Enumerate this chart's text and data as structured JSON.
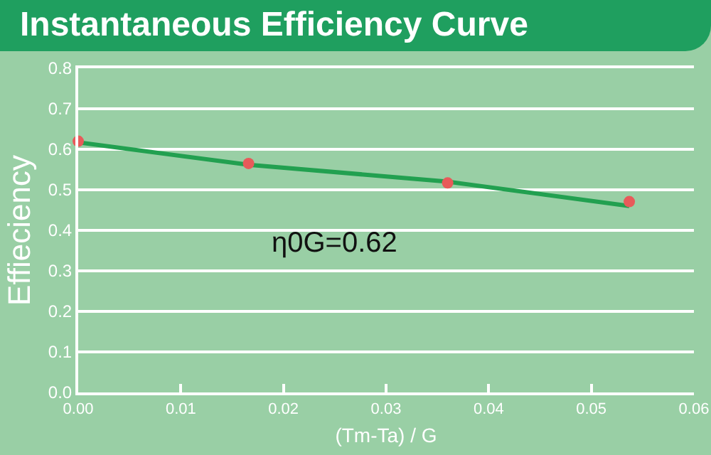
{
  "chart_data": {
    "type": "scatter",
    "title": "Instantaneous Efficiency Curve",
    "xlabel": "(Tm-Ta) / G",
    "ylabel": "Effieciency",
    "xlim": [
      0,
      0.06
    ],
    "xticks": [
      {
        "value": 0,
        "label": "0.00"
      },
      0.01,
      0.02,
      0.03,
      0.04,
      0.05,
      {
        "value": 0.06,
        "label": "0.06"
      }
    ],
    "ylim": [
      0,
      0.8
    ],
    "yticks": [
      {
        "value": 0,
        "label": "0.0"
      },
      0.1,
      0.2,
      0.3,
      0.4,
      0.5,
      0.6,
      0.7,
      0.8
    ],
    "grid": "y",
    "marker": "circle",
    "series": [
      {
        "type": "line",
        "color": "#22a050",
        "x": [
          0,
          0.0166,
          0.036,
          0.0537
        ],
        "values": [
          0.617,
          0.562,
          0.52,
          0.46
        ],
        "marker": "none",
        "line_style": "solid"
      },
      {
        "color": "#e85a5a",
        "x": [
          0,
          0.0166,
          0.036,
          0.0537
        ],
        "values": [
          0.62,
          0.565,
          0.517,
          0.471
        ]
      }
    ],
    "annotations": [
      "η0G=0.62"
    ]
  }
}
